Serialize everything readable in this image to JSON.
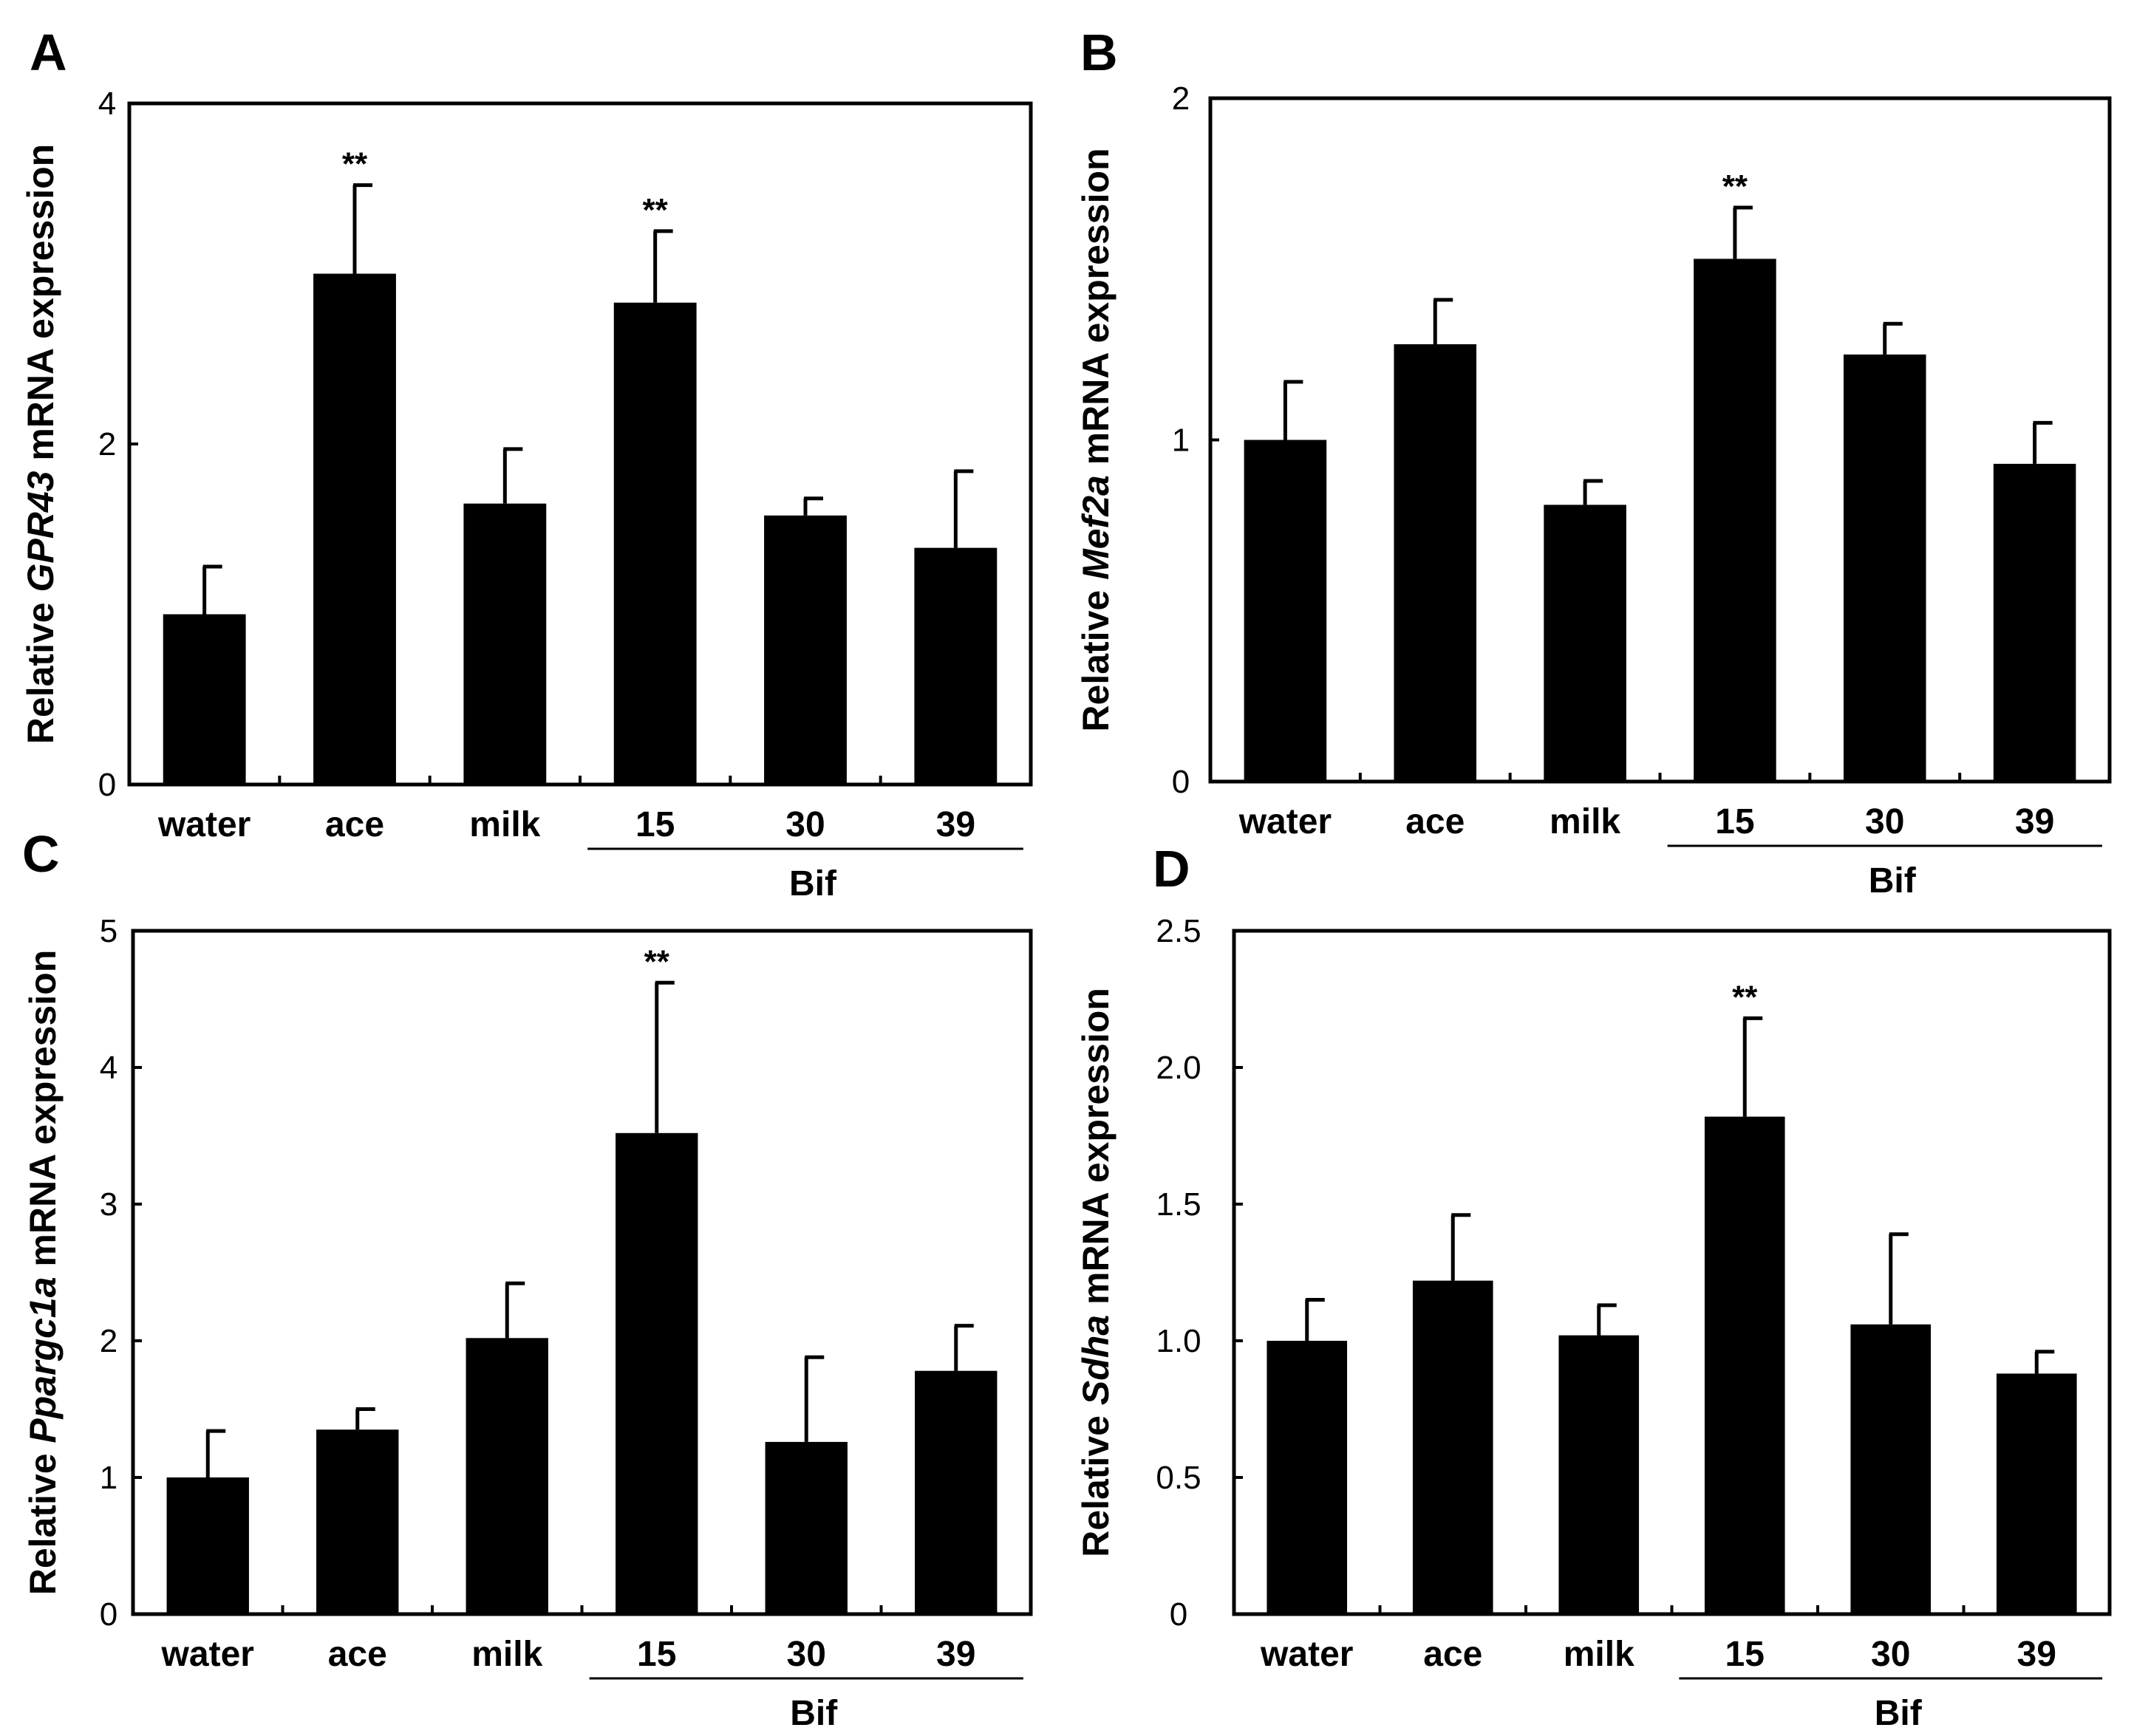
{
  "chart_data": [
    {
      "panel": "A",
      "type": "bar",
      "categories": [
        "water",
        "ace",
        "milk",
        "15",
        "30",
        "39"
      ],
      "values": [
        1.0,
        3.0,
        1.65,
        2.83,
        1.58,
        1.39
      ],
      "errors": [
        0.28,
        0.52,
        0.32,
        0.42,
        0.1,
        0.45
      ],
      "significance": [
        "",
        "**",
        "",
        "**",
        "",
        ""
      ],
      "group_label": "Bif",
      "group_start": 3,
      "ylabel_prefix": "Relative ",
      "ylabel_gene": "GPR43",
      "ylabel_suffix": " mRNA expression",
      "ylim": [
        0,
        4
      ],
      "yticks": [
        "0",
        "2",
        "4"
      ]
    },
    {
      "panel": "B",
      "type": "bar",
      "categories": [
        "water",
        "ace",
        "milk",
        "15",
        "30",
        "39"
      ],
      "values": [
        1.0,
        1.28,
        0.81,
        1.53,
        1.25,
        0.93
      ],
      "errors": [
        0.17,
        0.13,
        0.07,
        0.15,
        0.09,
        0.12
      ],
      "significance": [
        "",
        "",
        "",
        "**",
        "",
        ""
      ],
      "group_label": "Bif",
      "group_start": 3,
      "ylabel_prefix": "Relative ",
      "ylabel_gene": "Mef2a",
      "ylabel_suffix": " mRNA expression",
      "ylim": [
        0,
        2
      ],
      "yticks": [
        "0",
        "1",
        "2"
      ]
    },
    {
      "panel": "C",
      "type": "bar",
      "categories": [
        "water",
        "ace",
        "milk",
        "15",
        "30",
        "39"
      ],
      "values": [
        1.0,
        1.35,
        2.02,
        3.52,
        1.26,
        1.78
      ],
      "errors": [
        0.34,
        0.15,
        0.4,
        1.1,
        0.62,
        0.33
      ],
      "significance": [
        "",
        "",
        "",
        "**",
        "",
        ""
      ],
      "group_label": "Bif",
      "group_start": 3,
      "ylabel_prefix": "Relative ",
      "ylabel_gene": "Ppargc1a",
      "ylabel_suffix": " mRNA expression",
      "ylim": [
        0,
        5
      ],
      "yticks": [
        "0",
        "1",
        "2",
        "3",
        "4",
        "5"
      ]
    },
    {
      "panel": "D",
      "type": "bar",
      "categories": [
        "water",
        "ace",
        "milk",
        "15",
        "30",
        "39"
      ],
      "values": [
        1.0,
        1.22,
        1.02,
        1.82,
        1.06,
        0.88
      ],
      "errors": [
        0.15,
        0.24,
        0.11,
        0.36,
        0.33,
        0.08
      ],
      "significance": [
        "",
        "",
        "",
        "**",
        "",
        ""
      ],
      "group_label": "Bif",
      "group_start": 3,
      "ylabel_prefix": "Relative ",
      "ylabel_gene": "Sdha",
      "ylabel_suffix": " mRNA expression",
      "ylim": [
        0,
        2.5
      ],
      "yticks": [
        "0",
        "0.5",
        "1.0",
        "1.5",
        "2.0",
        "2.5"
      ]
    }
  ]
}
